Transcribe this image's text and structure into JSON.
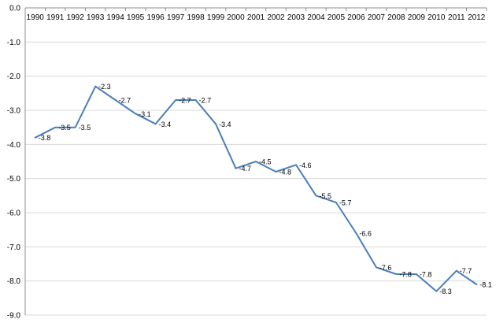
{
  "chart_data": {
    "type": "line",
    "title": "",
    "xlabel": "",
    "ylabel": "",
    "categories": [
      "1990",
      "1991",
      "1992",
      "1993",
      "1994",
      "1995",
      "1996",
      "1997",
      "1998",
      "1999",
      "2000",
      "2001",
      "2002",
      "2003",
      "2004",
      "2005",
      "2006",
      "2007",
      "2008",
      "2009",
      "2010",
      "2011",
      "2012"
    ],
    "series": [
      {
        "values": [
          -3.8,
          -3.5,
          -3.5,
          -2.3,
          -2.7,
          -3.1,
          -3.4,
          -2.7,
          -2.7,
          -3.4,
          -4.7,
          -4.5,
          -4.8,
          -4.6,
          -5.5,
          -5.7,
          -6.6,
          -7.6,
          -7.8,
          -7.8,
          -8.3,
          -7.7,
          -8.1
        ],
        "data_labels": [
          "-3.8",
          "-3.5",
          "-3.5",
          "-2.3",
          "-2.7",
          "-3.1",
          "-3.4",
          "-2.7",
          "-2.7",
          "-3.4",
          "-4.7",
          "-4.5",
          "-4.8",
          "-4.6",
          "-5.5",
          "-5.7",
          "-6.6",
          "-7.6",
          "-7.8",
          "-7.8",
          "-8.3",
          "-7.7",
          "-8.1"
        ],
        "color": "#4a7ebb"
      }
    ],
    "ylim": [
      -9.0,
      0.0
    ],
    "yticks": [
      0.0,
      -1.0,
      -2.0,
      -3.0,
      -4.0,
      -5.0,
      -6.0,
      -7.0,
      -8.0,
      -9.0
    ],
    "ytick_labels": [
      "0.0",
      "-1.0",
      "-2.0",
      "-3.0",
      "-4.0",
      "-5.0",
      "-6.0",
      "-7.0",
      "-8.0",
      "-9.0"
    ],
    "x_axis_position": "top",
    "grid": true,
    "legend": "none"
  }
}
